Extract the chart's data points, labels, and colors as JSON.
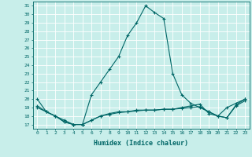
{
  "title": "",
  "xlabel": "Humidex (Indice chaleur)",
  "ylabel": "",
  "background_color": "#c8eeea",
  "grid_color": "#ffffff",
  "line_color": "#006666",
  "xlim": [
    -0.5,
    23.5
  ],
  "ylim": [
    16.5,
    31.5
  ],
  "yticks": [
    17,
    18,
    19,
    20,
    21,
    22,
    23,
    24,
    25,
    26,
    27,
    28,
    29,
    30,
    31
  ],
  "xticks": [
    0,
    1,
    2,
    3,
    4,
    5,
    6,
    7,
    8,
    9,
    10,
    11,
    12,
    13,
    14,
    15,
    16,
    17,
    18,
    19,
    20,
    21,
    22,
    23
  ],
  "series": [
    [
      20.0,
      18.5,
      18.0,
      17.5,
      17.0,
      17.0,
      20.5,
      22.0,
      23.5,
      25.0,
      27.5,
      29.0,
      31.0,
      30.2,
      29.5,
      23.0,
      20.5,
      19.5,
      19.0,
      18.5,
      18.0,
      19.0,
      19.5,
      20.0
    ],
    [
      19.2,
      18.5,
      18.0,
      17.3,
      17.0,
      17.0,
      17.5,
      18.0,
      18.3,
      18.5,
      18.5,
      18.7,
      18.7,
      18.7,
      18.8,
      18.8,
      18.9,
      19.0,
      19.1,
      18.5,
      18.0,
      17.8,
      19.3,
      20.0
    ],
    [
      19.0,
      18.5,
      18.0,
      17.3,
      17.0,
      17.0,
      17.5,
      18.0,
      18.2,
      18.4,
      18.5,
      18.6,
      18.7,
      18.7,
      18.8,
      18.8,
      19.0,
      19.2,
      19.4,
      18.3,
      18.0,
      17.8,
      19.2,
      19.8
    ]
  ]
}
